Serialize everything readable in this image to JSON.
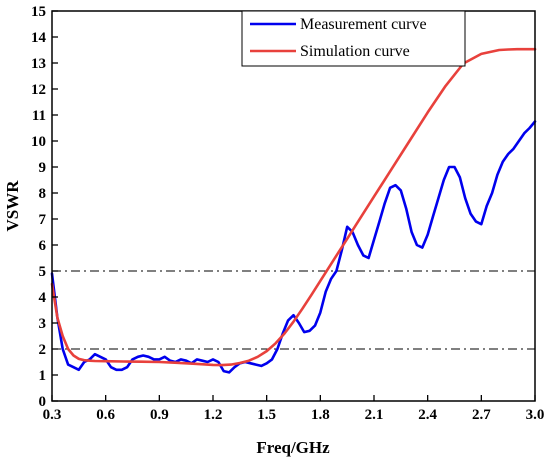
{
  "chart_data": {
    "type": "line",
    "xlabel": "Freq/GHz",
    "ylabel": "VSWR",
    "xlim": [
      0.3,
      3.0
    ],
    "ylim": [
      0,
      15
    ],
    "x_ticks": [
      "0.3",
      "0.6",
      "0.9",
      "1.2",
      "1.5",
      "1.8",
      "2.1",
      "2.4",
      "2.7",
      "3.0"
    ],
    "y_ticks": [
      "0",
      "1",
      "2",
      "3",
      "4",
      "5",
      "6",
      "7",
      "8",
      "9",
      "10",
      "11",
      "12",
      "13",
      "14",
      "15"
    ],
    "reference_lines": [
      2,
      5
    ],
    "legend_position": "top-right",
    "grid": false,
    "series": [
      {
        "name": "Measurement curve",
        "color": "#0000ee",
        "x": [
          0.3,
          0.33,
          0.36,
          0.39,
          0.42,
          0.45,
          0.48,
          0.51,
          0.54,
          0.57,
          0.6,
          0.63,
          0.66,
          0.69,
          0.72,
          0.75,
          0.78,
          0.81,
          0.84,
          0.87,
          0.9,
          0.93,
          0.96,
          0.99,
          1.02,
          1.05,
          1.08,
          1.11,
          1.14,
          1.17,
          1.2,
          1.23,
          1.26,
          1.29,
          1.32,
          1.35,
          1.38,
          1.41,
          1.44,
          1.47,
          1.5,
          1.53,
          1.56,
          1.59,
          1.62,
          1.65,
          1.68,
          1.71,
          1.74,
          1.77,
          1.8,
          1.83,
          1.86,
          1.89,
          1.92,
          1.95,
          1.98,
          2.01,
          2.04,
          2.07,
          2.1,
          2.13,
          2.16,
          2.19,
          2.22,
          2.25,
          2.28,
          2.31,
          2.34,
          2.37,
          2.4,
          2.43,
          2.46,
          2.49,
          2.52,
          2.55,
          2.58,
          2.61,
          2.64,
          2.67,
          2.7,
          2.73,
          2.76,
          2.79,
          2.82,
          2.85,
          2.88,
          2.91,
          2.94,
          2.97,
          3.0
        ],
        "y": [
          4.9,
          3.2,
          2.0,
          1.4,
          1.3,
          1.2,
          1.5,
          1.6,
          1.8,
          1.7,
          1.6,
          1.3,
          1.2,
          1.2,
          1.3,
          1.6,
          1.7,
          1.75,
          1.7,
          1.6,
          1.6,
          1.7,
          1.55,
          1.5,
          1.6,
          1.55,
          1.45,
          1.6,
          1.55,
          1.5,
          1.6,
          1.5,
          1.15,
          1.1,
          1.3,
          1.45,
          1.5,
          1.45,
          1.4,
          1.35,
          1.45,
          1.6,
          2.0,
          2.6,
          3.1,
          3.3,
          3.0,
          2.65,
          2.7,
          2.9,
          3.4,
          4.2,
          4.7,
          5.0,
          5.8,
          6.7,
          6.5,
          6.0,
          5.6,
          5.5,
          6.2,
          6.9,
          7.6,
          8.2,
          8.3,
          8.1,
          7.4,
          6.5,
          6.0,
          5.9,
          6.4,
          7.1,
          7.8,
          8.5,
          9.0,
          9.0,
          8.6,
          7.8,
          7.2,
          6.9,
          6.8,
          7.5,
          8.0,
          8.7,
          9.2,
          9.5,
          9.7,
          10.0,
          10.3,
          10.5,
          10.75
        ]
      },
      {
        "name": "Simulation curve",
        "color": "#e8413c",
        "x": [
          0.3,
          0.33,
          0.36,
          0.39,
          0.42,
          0.45,
          0.48,
          0.51,
          0.54,
          0.6,
          0.7,
          0.8,
          0.9,
          1.0,
          1.1,
          1.2,
          1.25,
          1.3,
          1.35,
          1.4,
          1.45,
          1.5,
          1.55,
          1.6,
          1.65,
          1.7,
          1.75,
          1.8,
          1.85,
          1.9,
          1.95,
          2.0,
          2.1,
          2.2,
          2.3,
          2.4,
          2.5,
          2.6,
          2.7,
          2.8,
          2.85,
          2.9,
          2.95,
          3.0
        ],
        "y": [
          4.5,
          3.2,
          2.5,
          2.0,
          1.75,
          1.62,
          1.57,
          1.55,
          1.54,
          1.53,
          1.52,
          1.51,
          1.5,
          1.47,
          1.43,
          1.39,
          1.38,
          1.4,
          1.46,
          1.55,
          1.7,
          1.92,
          2.22,
          2.6,
          3.05,
          3.55,
          4.08,
          4.62,
          5.16,
          5.7,
          6.24,
          6.78,
          7.86,
          8.94,
          10.02,
          11.1,
          12.12,
          12.98,
          13.35,
          13.5,
          13.52,
          13.53,
          13.53,
          13.53
        ]
      }
    ]
  }
}
